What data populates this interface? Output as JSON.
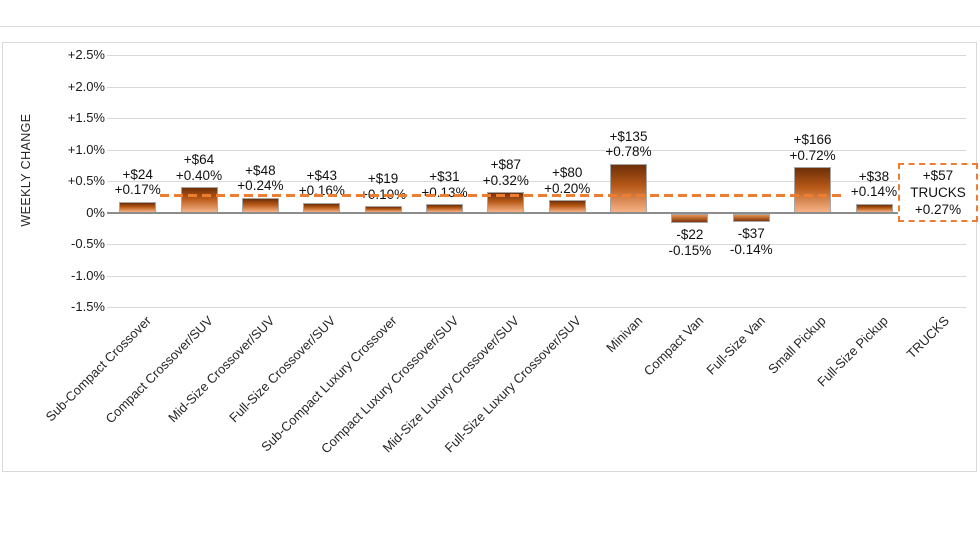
{
  "chart_data": {
    "type": "bar",
    "title": "",
    "ylabel": "WEEKLY CHANGE",
    "ylim": [
      -1.5,
      2.5
    ],
    "grid": true,
    "y_ticks": [
      {
        "label": "+2.5%",
        "value": 2.5
      },
      {
        "label": "+2.0%",
        "value": 2.0
      },
      {
        "label": "+1.5%",
        "value": 1.5
      },
      {
        "label": "+1.0%",
        "value": 1.0
      },
      {
        "label": "+0.5%",
        "value": 0.5
      },
      {
        "label": "0%",
        "value": 0.0
      },
      {
        "label": "-0.5%",
        "value": -0.5
      },
      {
        "label": "-1.0%",
        "value": -1.0
      },
      {
        "label": "-1.5%",
        "value": -1.5
      }
    ],
    "categories": [
      "Sub-Compact Crossover",
      "Compact Crossover/SUV",
      "Mid-Size Crossover/SUV",
      "Full-Size Crossover/SUV",
      "Sub-Compact Luxury Crossover",
      "Compact Luxury Crossover/SUV",
      "Mid-Size Luxury Crossover/SUV",
      "Full-Size Luxury Crossover/SUV",
      "Minivan",
      "Compact Van",
      "Full-Size Van",
      "Small Pickup",
      "Full-Size Pickup",
      "TRUCKS"
    ],
    "bars": [
      {
        "category": "Sub-Compact Crossover",
        "dollar_label": "+$24",
        "pct_label": "+0.17%",
        "pct_value": 0.17
      },
      {
        "category": "Compact Crossover/SUV",
        "dollar_label": "+$64",
        "pct_label": "+0.40%",
        "pct_value": 0.4
      },
      {
        "category": "Mid-Size Crossover/SUV",
        "dollar_label": "+$48",
        "pct_label": "+0.24%",
        "pct_value": 0.24
      },
      {
        "category": "Full-Size Crossover/SUV",
        "dollar_label": "+$43",
        "pct_label": "+0.16%",
        "pct_value": 0.16
      },
      {
        "category": "Sub-Compact Luxury Crossover",
        "dollar_label": "+$19",
        "pct_label": "+0.10%",
        "pct_value": 0.1
      },
      {
        "category": "Compact Luxury Crossover/SUV",
        "dollar_label": "+$31",
        "pct_label": "+0.13%",
        "pct_value": 0.13
      },
      {
        "category": "Mid-Size Luxury Crossover/SUV",
        "dollar_label": "+$87",
        "pct_label": "+0.32%",
        "pct_value": 0.32
      },
      {
        "category": "Full-Size Luxury Crossover/SUV",
        "dollar_label": "+$80",
        "pct_label": "+0.20%",
        "pct_value": 0.2
      },
      {
        "category": "Minivan",
        "dollar_label": "+$135",
        "pct_label": "+0.78%",
        "pct_value": 0.78
      },
      {
        "category": "Compact Van",
        "dollar_label": "-$22",
        "pct_label": "-0.15%",
        "pct_value": -0.15
      },
      {
        "category": "Full-Size Van",
        "dollar_label": "-$37",
        "pct_label": "-0.14%",
        "pct_value": -0.14
      },
      {
        "category": "Small Pickup",
        "dollar_label": "+$166",
        "pct_label": "+0.72%",
        "pct_value": 0.72
      },
      {
        "category": "Full-Size Pickup",
        "dollar_label": "+$38",
        "pct_label": "+0.14%",
        "pct_value": 0.14
      }
    ],
    "reference_line": {
      "value": 0.27,
      "style": "dashed",
      "color": "#ED7D31",
      "box_lines": [
        "+$57",
        "TRUCKS",
        "+0.27%"
      ]
    },
    "colors": {
      "bar_gradient_top": "#6E2F07",
      "bar_gradient_bottom": "#F6B286",
      "bar_border": "#A6A6A6",
      "accent_orange": "#ED7D31",
      "gridline": "#D9D9D9",
      "text": "#1A1A1A"
    }
  }
}
